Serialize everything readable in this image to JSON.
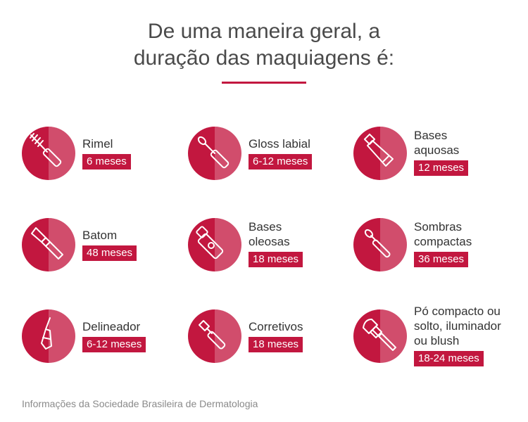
{
  "title": {
    "line1": "De uma maneira geral, a",
    "line2": "duração das maquiagens é:"
  },
  "colors": {
    "primary": "#c2173f",
    "secondary": "#d14d6c",
    "text": "#333333",
    "muted": "#8a8a8a"
  },
  "items": [
    {
      "label": [
        "Rimel"
      ],
      "duration": "6 meses",
      "icon": "mascara-icon"
    },
    {
      "label": [
        "Gloss labial"
      ],
      "duration": "6-12 meses",
      "icon": "lip-gloss-icon"
    },
    {
      "label": [
        "Bases",
        "aquosas"
      ],
      "duration": "12 meses",
      "icon": "foundation-tube-icon"
    },
    {
      "label": [
        "Batom"
      ],
      "duration": "48 meses",
      "icon": "lipstick-icon"
    },
    {
      "label": [
        "Bases",
        "oleosas"
      ],
      "duration": "18 meses",
      "icon": "foundation-bottle-icon"
    },
    {
      "label": [
        "Sombras",
        "compactas"
      ],
      "duration": "36 meses",
      "icon": "eyeshadow-applicator-icon"
    },
    {
      "label": [
        "Delineador"
      ],
      "duration": "6-12 meses",
      "icon": "eyeliner-icon"
    },
    {
      "label": [
        "Corretivos"
      ],
      "duration": "18 meses",
      "icon": "concealer-icon"
    },
    {
      "label": [
        "Pó compacto ou",
        "solto, iluminador",
        "ou blush"
      ],
      "duration": "18-24 meses",
      "icon": "powder-brush-icon"
    }
  ],
  "footer": "Informações da Sociedade Brasileira de Dermatologia"
}
